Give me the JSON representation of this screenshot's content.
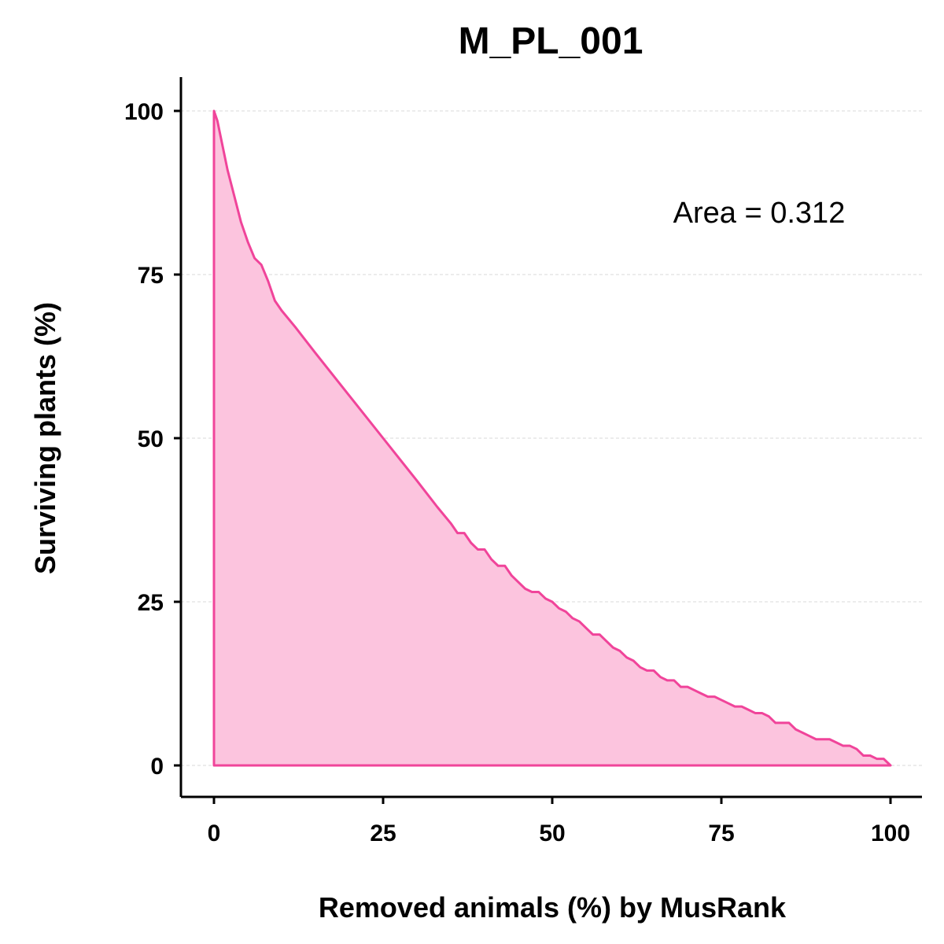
{
  "chart_data": {
    "type": "area",
    "title": "M_PL_001",
    "xlabel": "Removed animals (%) by MusRank",
    "ylabel": "Surviving plants (%)",
    "annotation": "Area = 0.312",
    "xlim": [
      0,
      100
    ],
    "ylim": [
      0,
      100
    ],
    "xticks": [
      0,
      25,
      50,
      75,
      100
    ],
    "yticks": [
      0,
      25,
      50,
      75,
      100
    ],
    "grid": "horizontal-dashed",
    "colors": {
      "line": "#f0449a",
      "fill": "#fcc4de"
    },
    "series": [
      {
        "x": [
          0,
          0.5,
          1,
          1.5,
          2,
          3,
          4,
          5,
          6,
          7,
          8,
          9,
          10,
          12,
          15,
          20,
          25,
          30,
          33,
          35,
          36,
          37,
          38,
          39,
          40,
          41,
          42,
          43,
          44,
          45,
          46,
          47,
          48,
          49,
          50,
          51,
          52,
          53,
          54,
          55,
          56,
          57,
          58,
          59,
          60,
          61,
          62,
          63,
          64,
          65,
          66,
          67,
          68,
          69,
          70,
          71,
          72,
          73,
          74,
          75,
          76,
          77,
          78,
          79,
          80,
          81,
          82,
          83,
          84,
          85,
          86,
          87,
          88,
          89,
          90,
          91,
          92,
          93,
          94,
          95,
          96,
          97,
          98,
          99,
          100
        ],
        "y": [
          100,
          98.5,
          96,
          93.5,
          91,
          87,
          83,
          80,
          77.5,
          76.5,
          74,
          71,
          69.5,
          67,
          63,
          56.5,
          50,
          43.5,
          39.5,
          37,
          35.5,
          35.5,
          34,
          33,
          33,
          31.5,
          30.5,
          30.5,
          29,
          28,
          27,
          26.5,
          26.5,
          25.5,
          25,
          24,
          23.5,
          22.5,
          22,
          21,
          20,
          20,
          19,
          18,
          17.5,
          16.5,
          16,
          15,
          14.5,
          14.5,
          13.5,
          13,
          13,
          12,
          12,
          11.5,
          11,
          10.5,
          10.5,
          10,
          9.5,
          9,
          9,
          8.5,
          8,
          8,
          7.5,
          6.5,
          6.5,
          6.5,
          5.5,
          5,
          4.5,
          4,
          4,
          4,
          3.5,
          3,
          3,
          2.5,
          1.5,
          1.5,
          1,
          1,
          0
        ]
      }
    ]
  }
}
